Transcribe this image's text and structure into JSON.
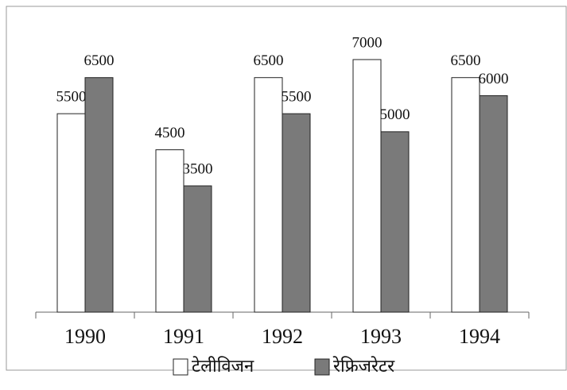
{
  "chart_data": {
    "type": "bar",
    "categories": [
      "1990",
      "1991",
      "1992",
      "1993",
      "1994"
    ],
    "series": [
      {
        "name": "टेलीविजन",
        "color": "#ffffff",
        "values": [
          5500,
          4500,
          6500,
          7000,
          6500
        ]
      },
      {
        "name": "रेफ्रिजरेटर",
        "color": "#7a7a7a",
        "values": [
          6500,
          3500,
          5500,
          5000,
          6000
        ]
      }
    ]
  }
}
